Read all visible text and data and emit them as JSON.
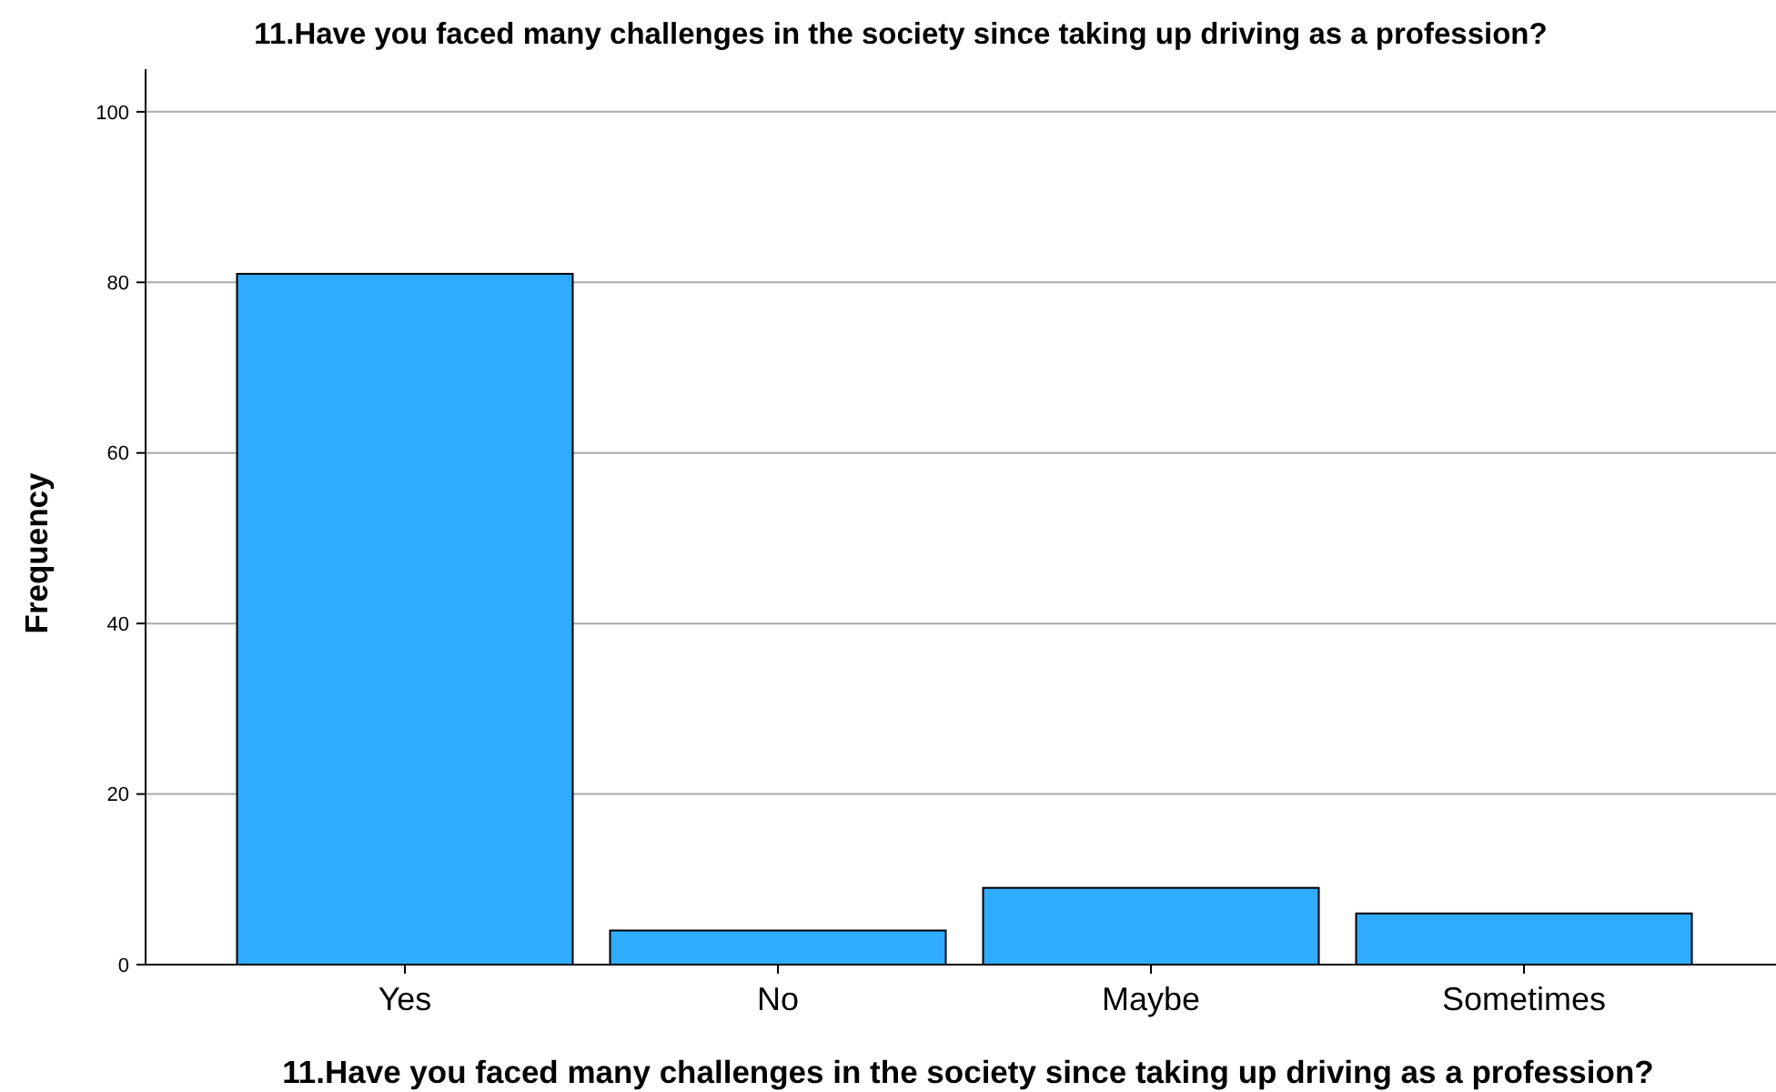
{
  "chart_data": {
    "type": "bar",
    "title": "11.Have you faced many challenges in the society since taking up driving as a profession?",
    "xlabel": "11.Have you faced many challenges in the society since taking up driving as a profession?",
    "ylabel": "Frequency",
    "categories": [
      "Yes",
      "No",
      "Maybe",
      "Sometimes"
    ],
    "values": [
      81,
      4,
      9,
      6
    ],
    "color": "#30acff",
    "ylim": [
      0,
      105
    ],
    "yticks": [
      0,
      20,
      40,
      60,
      80,
      100
    ],
    "grid": "y"
  }
}
